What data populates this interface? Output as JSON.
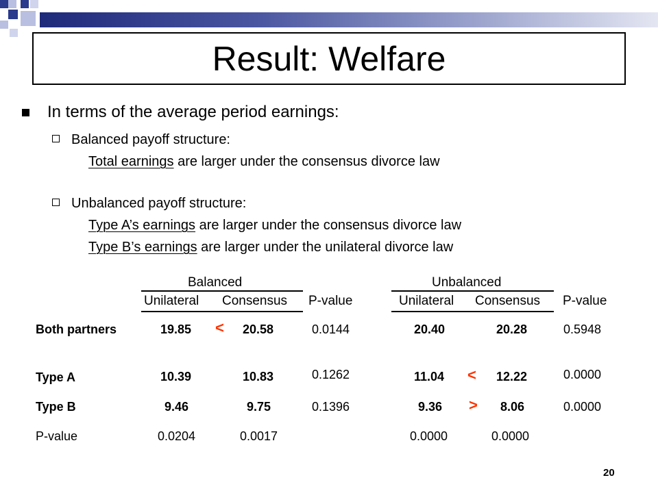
{
  "slide": {
    "title": "Result: Welfare",
    "page_number": "20"
  },
  "bullets": {
    "main": "In terms of the average period earnings:",
    "balanced": {
      "heading": "Balanced payoff structure:",
      "line1_underlined": "Total earnings",
      "line1_rest": " are larger under the consensus divorce law"
    },
    "unbalanced": {
      "heading": "Unbalanced payoff structure:",
      "line1_underlined": "Type A’s earnings",
      "line1_rest": " are larger under the consensus divorce law",
      "line2_underlined": "Type B’s earnings",
      "line2_rest": " are larger under the unilateral divorce law"
    }
  },
  "table": {
    "group_headers": [
      "Balanced",
      "Unbalanced"
    ],
    "sub_headers": [
      "Unilateral",
      "Consensus",
      "P-value",
      "Unilateral",
      "Consensus",
      "P-value"
    ],
    "rows": [
      {
        "label": "Both partners",
        "b_uni": "19.85",
        "b_sign": "<",
        "b_con": "20.58",
        "b_p": "0.0144",
        "u_uni": "20.40",
        "u_sign": "",
        "u_con": "20.28",
        "u_p": "0.5948"
      },
      {
        "label": "Type A",
        "b_uni": "10.39",
        "b_sign": "",
        "b_con": "10.83",
        "b_p": "0.1262",
        "u_uni": "11.04",
        "u_sign": "<",
        "u_con": "12.22",
        "u_p": "0.0000"
      },
      {
        "label": "Type B",
        "b_uni": "9.46",
        "b_sign": "",
        "b_con": "9.75",
        "b_p": "0.1396",
        "u_uni": "9.36",
        "u_sign": ">",
        "u_con": "8.06",
        "u_p": "0.0000"
      },
      {
        "label": "P-value",
        "b_uni": "0.0204",
        "b_sign": "",
        "b_con": "0.0017",
        "b_p": "",
        "u_uni": "0.0000",
        "u_sign": "",
        "u_con": "0.0000",
        "u_p": ""
      }
    ]
  },
  "colors": {
    "comparison_sign": "#ff3300",
    "deco_dark": "#2a3a8c",
    "deco_light": "#b9bfe0"
  }
}
